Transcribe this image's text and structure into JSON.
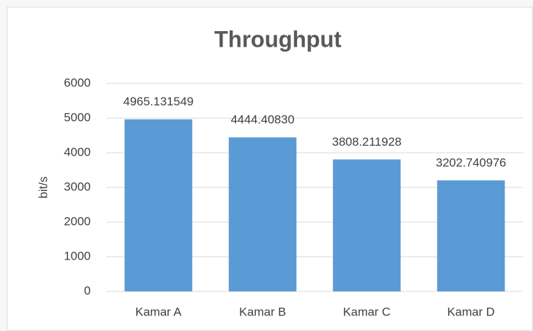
{
  "chart_data": {
    "type": "bar",
    "title": "Throughput",
    "y_label": "bit/s",
    "categories": [
      "Kamar A",
      "Kamar B",
      "Kamar C",
      "Kamar D"
    ],
    "values": [
      4965.131549,
      4444.4083,
      3808.211928,
      3202.740976
    ],
    "value_labels": [
      "4965.131549",
      "4444.40830",
      "3808.211928",
      "3202.740976"
    ],
    "color": "#5b9bd5",
    "ylim": [
      0,
      6000
    ],
    "yticks": [
      0,
      1000,
      2000,
      3000,
      4000,
      5000,
      6000
    ],
    "grid": true
  }
}
